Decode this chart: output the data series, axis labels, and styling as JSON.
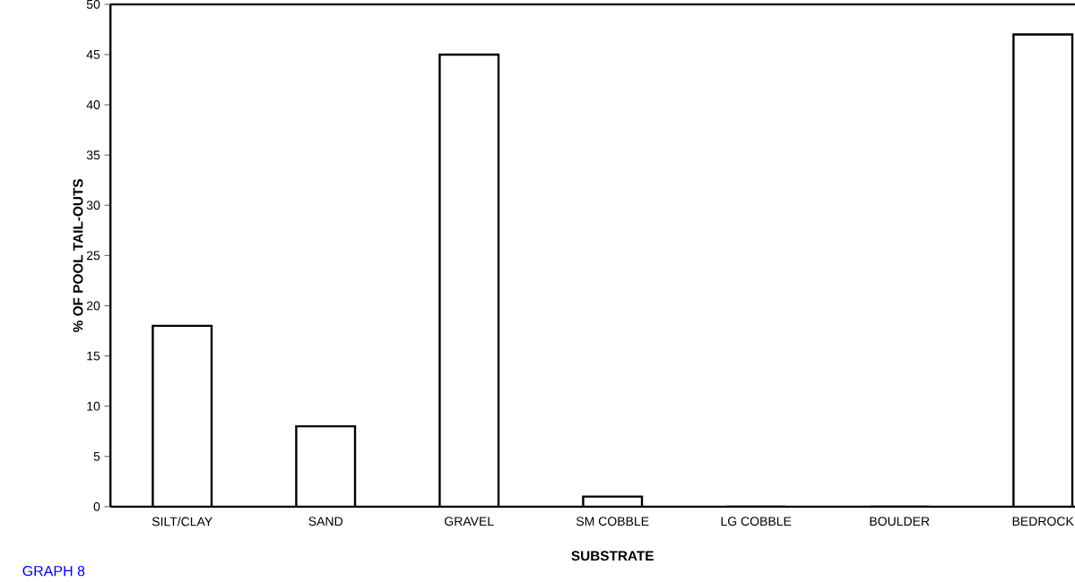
{
  "chart_data": {
    "type": "bar",
    "xlabel": "SUBSTRATE",
    "ylabel": "% OF POOL TAIL-OUTS",
    "categories": [
      "SILT/CLAY",
      "SAND",
      "GRAVEL",
      "SM COBBLE",
      "LG COBBLE",
      "BOULDER",
      "BEDROCK"
    ],
    "values": [
      18,
      8,
      45,
      1,
      0,
      0,
      47
    ],
    "color": "#000000",
    "ylim": [
      0,
      50
    ],
    "yticks": [
      0,
      5,
      10,
      15,
      20,
      25,
      30,
      35,
      40,
      45,
      50
    ],
    "grid": false,
    "annotations": [
      "GRAPH 8"
    ]
  }
}
